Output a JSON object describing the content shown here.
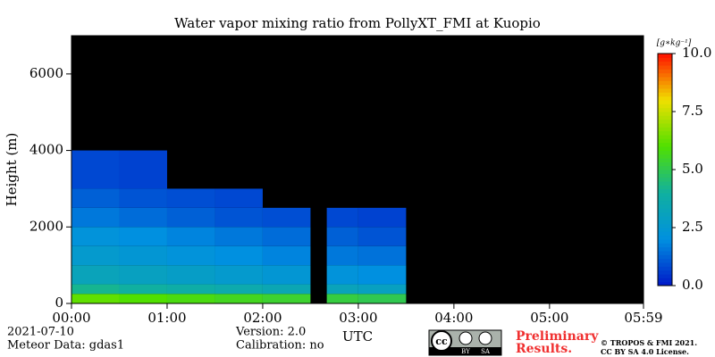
{
  "chart_data": {
    "type": "heatmap",
    "title": "Water vapor mixing ratio from PollyXT_FMI at Kuopio",
    "y_label": "Height (m)",
    "x_label": "UTC",
    "xlim": [
      0,
      5.983
    ],
    "xticks": [
      {
        "value": 0,
        "label": "00:00"
      },
      {
        "value": 1,
        "label": "01:00"
      },
      {
        "value": 2,
        "label": "02:00"
      },
      {
        "value": 3,
        "label": "03:00"
      },
      {
        "value": 4,
        "label": "04:00"
      },
      {
        "value": 5,
        "label": "05:00"
      },
      {
        "value": 5.983,
        "label": "05:59"
      }
    ],
    "ylim": [
      0,
      7000
    ],
    "yticks": [
      0,
      2000,
      4000,
      6000
    ],
    "x_bins": [
      0,
      0.5,
      1,
      1.5,
      2,
      2.5,
      2.67,
      3,
      3.5
    ],
    "y_bins": [
      0,
      250,
      500,
      1000,
      1500,
      2000,
      2500,
      3000,
      4000,
      5000,
      6000,
      7000
    ],
    "values": [
      [
        6.2,
        4.2,
        3.2,
        2.6,
        2.2,
        1.6,
        1.2,
        0.8,
        null,
        null,
        null
      ],
      [
        6.0,
        4.0,
        3.0,
        2.4,
        2.0,
        1.4,
        1.0,
        0.7,
        null,
        null,
        null
      ],
      [
        5.8,
        3.8,
        2.8,
        2.2,
        1.8,
        1.2,
        0.9,
        null,
        null,
        null,
        null
      ],
      [
        5.6,
        3.6,
        2.6,
        2.0,
        1.6,
        1.0,
        0.8,
        null,
        null,
        null,
        null
      ],
      [
        5.4,
        3.4,
        2.4,
        1.8,
        1.4,
        0.9,
        null,
        null,
        null,
        null,
        null
      ],
      [
        null,
        null,
        null,
        null,
        null,
        null,
        null,
        null,
        null,
        null,
        null
      ],
      [
        5.2,
        3.2,
        2.2,
        1.6,
        1.2,
        0.8,
        null,
        null,
        null,
        null,
        null
      ],
      [
        5.0,
        3.0,
        2.0,
        1.5,
        1.0,
        0.7,
        null,
        null,
        null,
        null,
        null
      ]
    ],
    "colorbar": {
      "label": "[g∗kg⁻¹]",
      "lim": [
        0,
        10
      ],
      "ticks": [
        {
          "value": 0,
          "label": "0.0"
        },
        {
          "value": 2.5,
          "label": "2.5"
        },
        {
          "value": 5,
          "label": "5.0"
        },
        {
          "value": 7.5,
          "label": "7.5"
        },
        {
          "value": 10,
          "label": "10.0"
        }
      ],
      "colormap": [
        "#0018c8",
        "#0090e0",
        "#10b0a0",
        "#50e000",
        "#f0e000",
        "#ff1000"
      ]
    },
    "background": "#000000",
    "date": "2021-07-10",
    "meteor": "Meteor Data: gdas1",
    "version": "Version: 2.0",
    "calibration": "Calibration: no",
    "preliminary": [
      "Preliminary",
      "Results."
    ],
    "license_logo": [
      "cc",
      "BY",
      "SA"
    ],
    "copyright": [
      "© TROPOS & FMI 2021.",
      "CC BY SA 4.0 License."
    ]
  }
}
